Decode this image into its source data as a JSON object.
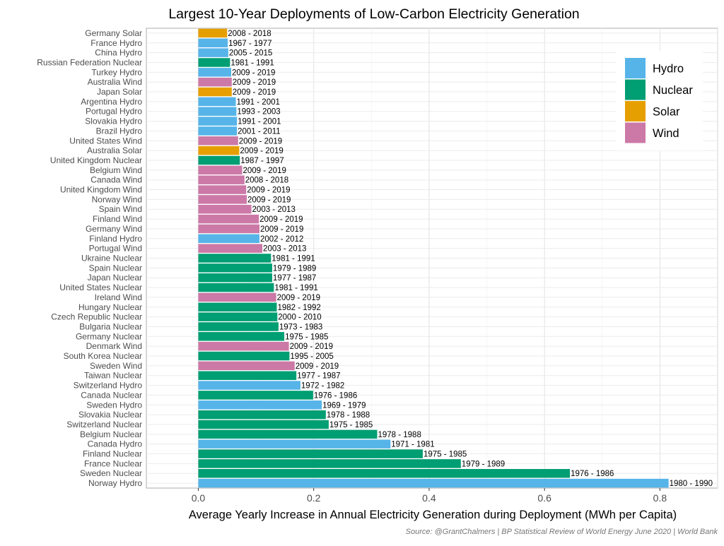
{
  "chart_data": {
    "type": "bar",
    "orientation": "horizontal",
    "title": "Largest 10-Year Deployments of Low-Carbon Electricity Generation",
    "xlabel": "Average Yearly Increase in Annual Electricity Generation during Deployment (MWh per Capita)",
    "ylabel": "",
    "caption": "Source: @GrantChalmers | BP Statistical Review of World Energy June 2020 | World Bank",
    "xlim": [
      -0.09,
      0.9
    ],
    "xticks": [
      0.0,
      0.2,
      0.4,
      0.6,
      0.8
    ],
    "xtick_labels": [
      "0.0",
      "0.2",
      "0.4",
      "0.6",
      "0.8"
    ],
    "grid": true,
    "legend_position": "top-right",
    "legend": [
      {
        "name": "Hydro",
        "color": "#56B4E9"
      },
      {
        "name": "Nuclear",
        "color": "#009E73"
      },
      {
        "name": "Solar",
        "color": "#E69F00"
      },
      {
        "name": "Wind",
        "color": "#CC79A7"
      }
    ],
    "bars": [
      {
        "label": "Germany Solar",
        "type": "Solar",
        "value": 0.05,
        "period": "2008 - 2018"
      },
      {
        "label": "France Hydro",
        "type": "Hydro",
        "value": 0.051,
        "period": "1967 - 1977"
      },
      {
        "label": "China Hydro",
        "type": "Hydro",
        "value": 0.052,
        "period": "2005 - 2015"
      },
      {
        "label": "Russian Federation Nuclear",
        "type": "Nuclear",
        "value": 0.055,
        "period": "1981 - 1991"
      },
      {
        "label": "Turkey Hydro",
        "type": "Hydro",
        "value": 0.057,
        "period": "2009 - 2019"
      },
      {
        "label": "Australia Wind",
        "type": "Wind",
        "value": 0.058,
        "period": "2009 - 2019"
      },
      {
        "label": "Japan Solar",
        "type": "Solar",
        "value": 0.058,
        "period": "2009 - 2019"
      },
      {
        "label": "Argentina Hydro",
        "type": "Hydro",
        "value": 0.065,
        "period": "1991 - 2001"
      },
      {
        "label": "Portugal Hydro",
        "type": "Hydro",
        "value": 0.066,
        "period": "1993 - 2003"
      },
      {
        "label": "Slovakia Hydro",
        "type": "Hydro",
        "value": 0.067,
        "period": "1991 - 2001"
      },
      {
        "label": "Brazil Hydro",
        "type": "Hydro",
        "value": 0.067,
        "period": "2001 - 2011"
      },
      {
        "label": "United States Wind",
        "type": "Wind",
        "value": 0.069,
        "period": "2009 - 2019"
      },
      {
        "label": "Australia Solar",
        "type": "Solar",
        "value": 0.071,
        "period": "2009 - 2019"
      },
      {
        "label": "United Kingdom Nuclear",
        "type": "Nuclear",
        "value": 0.072,
        "period": "1987 - 1997"
      },
      {
        "label": "Belgium Wind",
        "type": "Wind",
        "value": 0.076,
        "period": "2009 - 2019"
      },
      {
        "label": "Canada Wind",
        "type": "Wind",
        "value": 0.08,
        "period": "2008 - 2018"
      },
      {
        "label": "United Kingdom Wind",
        "type": "Wind",
        "value": 0.083,
        "period": "2009 - 2019"
      },
      {
        "label": "Norway Wind",
        "type": "Wind",
        "value": 0.084,
        "period": "2009 - 2019"
      },
      {
        "label": "Spain Wind",
        "type": "Wind",
        "value": 0.092,
        "period": "2003 - 2013"
      },
      {
        "label": "Finland Wind",
        "type": "Wind",
        "value": 0.105,
        "period": "2009 - 2019"
      },
      {
        "label": "Germany Wind",
        "type": "Wind",
        "value": 0.106,
        "period": "2009 - 2019"
      },
      {
        "label": "Finland Hydro",
        "type": "Hydro",
        "value": 0.106,
        "period": "2002 - 2012"
      },
      {
        "label": "Portugal Wind",
        "type": "Wind",
        "value": 0.111,
        "period": "2003 - 2013"
      },
      {
        "label": "Ukraine Nuclear",
        "type": "Nuclear",
        "value": 0.126,
        "period": "1981 - 1991"
      },
      {
        "label": "Spain Nuclear",
        "type": "Nuclear",
        "value": 0.128,
        "period": "1979 - 1989"
      },
      {
        "label": "Japan Nuclear",
        "type": "Nuclear",
        "value": 0.128,
        "period": "1977 - 1987"
      },
      {
        "label": "United States Nuclear",
        "type": "Nuclear",
        "value": 0.131,
        "period": "1981 - 1991"
      },
      {
        "label": "Ireland Wind",
        "type": "Wind",
        "value": 0.135,
        "period": "2009 - 2019"
      },
      {
        "label": "Hungary Nuclear",
        "type": "Nuclear",
        "value": 0.136,
        "period": "1982 - 1992"
      },
      {
        "label": "Czech Republic Nuclear",
        "type": "Nuclear",
        "value": 0.137,
        "period": "2000 - 2010"
      },
      {
        "label": "Bulgaria Nuclear",
        "type": "Nuclear",
        "value": 0.139,
        "period": "1973 - 1983"
      },
      {
        "label": "Germany Nuclear",
        "type": "Nuclear",
        "value": 0.149,
        "period": "1975 - 1985"
      },
      {
        "label": "Denmark Wind",
        "type": "Wind",
        "value": 0.157,
        "period": "2009 - 2019"
      },
      {
        "label": "South Korea Nuclear",
        "type": "Nuclear",
        "value": 0.158,
        "period": "1995 - 2005"
      },
      {
        "label": "Sweden Wind",
        "type": "Wind",
        "value": 0.167,
        "period": "2009 - 2019"
      },
      {
        "label": "Taiwan Nuclear",
        "type": "Nuclear",
        "value": 0.17,
        "period": "1977 - 1987"
      },
      {
        "label": "Switzerland Hydro",
        "type": "Hydro",
        "value": 0.177,
        "period": "1972 - 1982"
      },
      {
        "label": "Canada Nuclear",
        "type": "Nuclear",
        "value": 0.199,
        "period": "1976 - 1986"
      },
      {
        "label": "Sweden Hydro",
        "type": "Hydro",
        "value": 0.214,
        "period": "1969 - 1979"
      },
      {
        "label": "Slovakia Nuclear",
        "type": "Nuclear",
        "value": 0.221,
        "period": "1978 - 1988"
      },
      {
        "label": "Switzerland Nuclear",
        "type": "Nuclear",
        "value": 0.226,
        "period": "1975 - 1985"
      },
      {
        "label": "Belgium Nuclear",
        "type": "Nuclear",
        "value": 0.31,
        "period": "1978 - 1988"
      },
      {
        "label": "Canada Hydro",
        "type": "Hydro",
        "value": 0.333,
        "period": "1971 - 1981"
      },
      {
        "label": "Finland Nuclear",
        "type": "Nuclear",
        "value": 0.389,
        "period": "1975 - 1985"
      },
      {
        "label": "France Nuclear",
        "type": "Nuclear",
        "value": 0.455,
        "period": "1979 - 1989"
      },
      {
        "label": "Sweden Nuclear",
        "type": "Nuclear",
        "value": 0.644,
        "period": "1976 - 1986"
      },
      {
        "label": "Norway Hydro",
        "type": "Hydro",
        "value": 0.815,
        "period": "1980 - 1990"
      }
    ]
  }
}
